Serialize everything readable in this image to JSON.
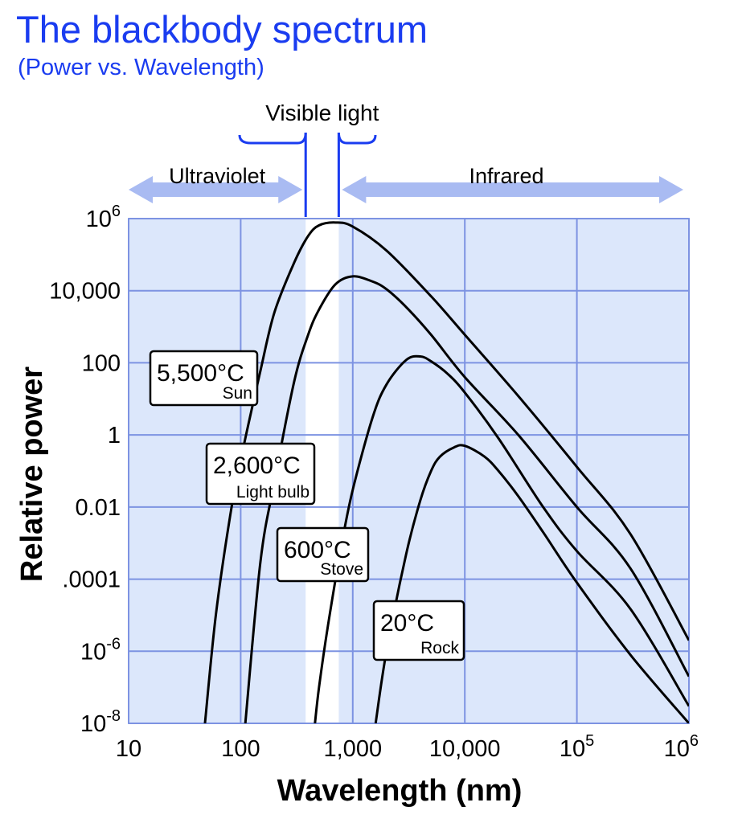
{
  "chart_data": {
    "type": "line",
    "title": "The blackbody spectrum",
    "subtitle": "(Power vs. Wavelength)",
    "xlabel": "Wavelength (nm)",
    "ylabel": "Relative power",
    "x_scale": "log",
    "y_scale": "log",
    "xlim": [
      10,
      1000000
    ],
    "ylim": [
      1e-08,
      1000000
    ],
    "grid": true,
    "x_ticks": [
      {
        "value": 10,
        "base": "10",
        "exp": ""
      },
      {
        "value": 100,
        "base": "100",
        "exp": ""
      },
      {
        "value": 1000,
        "base": "1,000",
        "exp": ""
      },
      {
        "value": 10000,
        "base": "10,000",
        "exp": ""
      },
      {
        "value": 100000,
        "base": "10",
        "exp": "5"
      },
      {
        "value": 1000000,
        "base": "10",
        "exp": "6"
      }
    ],
    "y_ticks": [
      {
        "value": 1000000,
        "base": "10",
        "exp": "6"
      },
      {
        "value": 10000,
        "base": "10,000",
        "exp": ""
      },
      {
        "value": 100,
        "base": "100",
        "exp": ""
      },
      {
        "value": 1,
        "base": "1",
        "exp": ""
      },
      {
        "value": 0.01,
        "base": "0.01",
        "exp": ""
      },
      {
        "value": 0.0001,
        "base": ".0001",
        "exp": ""
      },
      {
        "value": 1e-06,
        "base": "10",
        "exp": "-6"
      },
      {
        "value": 1e-08,
        "base": "10",
        "exp": "-8"
      }
    ],
    "regions": [
      {
        "label": "Ultraviolet",
        "from": 10,
        "to": 380
      },
      {
        "label": "Visible light",
        "from": 380,
        "to": 750
      },
      {
        "label": "Infrared",
        "from": 750,
        "to": 1000000
      }
    ],
    "series": [
      {
        "name": "5,500°C",
        "sublabel": "Sun",
        "x": [
          48,
          60,
          80,
          100,
          150,
          200,
          300,
          400,
          500,
          700,
          1000,
          2000,
          5000,
          10000,
          30000,
          100000,
          300000,
          1000000
        ],
        "y": [
          1e-08,
          1e-05,
          0.005,
          0.2,
          60,
          2500,
          60000,
          330000,
          650000,
          780000,
          600000,
          130000,
          7000,
          600,
          12,
          0.13,
          0.0018,
          2e-06
        ]
      },
      {
        "name": "2,600°C",
        "sublabel": "Light bulb",
        "x": [
          110,
          150,
          200,
          300,
          400,
          500,
          700,
          1000,
          1500,
          2000,
          3000,
          5000,
          10000,
          30000,
          100000,
          300000,
          1000000
        ],
        "y": [
          1e-08,
          0.0003,
          0.05,
          30,
          600,
          3000,
          15000,
          25000,
          18000,
          11000,
          3500,
          600,
          40,
          1,
          0.01,
          0.0002,
          2e-07
        ]
      },
      {
        "name": "600°C",
        "sublabel": "Stove",
        "x": [
          460,
          500,
          600,
          800,
          1000,
          1500,
          2000,
          3000,
          4000,
          5000,
          7000,
          10000,
          20000,
          50000,
          100000,
          300000,
          1000000
        ],
        "y": [
          1e-08,
          1e-07,
          5e-06,
          0.001,
          0.03,
          3,
          25,
          120,
          150,
          110,
          50,
          15,
          0.8,
          0.01,
          0.0006,
          1.5e-05,
          3e-08
        ]
      },
      {
        "name": "20°C",
        "sublabel": "Rock",
        "x": [
          1600,
          2000,
          3000,
          4000,
          5000,
          6000,
          8000,
          10000,
          15000,
          20000,
          30000,
          50000,
          100000,
          300000,
          1000000
        ],
        "y": [
          1e-08,
          1e-06,
          0.0005,
          0.015,
          0.1,
          0.25,
          0.45,
          0.5,
          0.25,
          0.1,
          0.02,
          0.002,
          8e-05,
          8e-07,
          1e-08
        ]
      }
    ]
  }
}
